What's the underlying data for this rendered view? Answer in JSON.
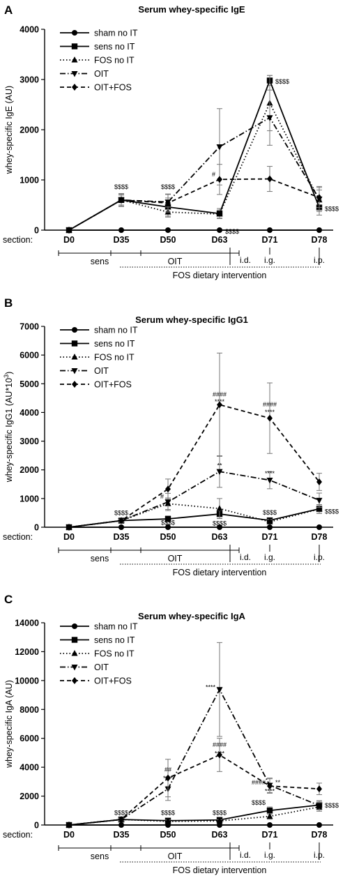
{
  "chart_data": [
    {
      "panel_label": "A",
      "type": "line",
      "title": "Serum whey-specific IgE",
      "ylabel": "whey-specific IgE (AU)",
      "xlabel": "section:",
      "categories": [
        "D0",
        "D35",
        "D50",
        "D63",
        "D71",
        "D78"
      ],
      "ylim": [
        0,
        4000
      ],
      "yticks": [
        "0",
        "1000",
        "2000",
        "3000",
        "4000"
      ],
      "legend_position": "top-left",
      "series": [
        {
          "name": "sham no IT",
          "values": [
            0,
            0,
            0,
            0,
            0,
            0
          ],
          "errors": [
            0,
            0,
            0,
            0,
            0,
            0
          ]
        },
        {
          "name": "sens no IT",
          "values": [
            0,
            600,
            460,
            330,
            2980,
            450
          ],
          "errors": [
            0,
            130,
            180,
            100,
            100,
            150
          ]
        },
        {
          "name": "FOS no IT",
          "values": [
            0,
            600,
            360,
            320,
            2530,
            600
          ],
          "errors": [
            0,
            120,
            100,
            80,
            550,
            200
          ]
        },
        {
          "name": "OIT",
          "values": [
            0,
            600,
            560,
            1660,
            2240,
            620
          ],
          "errors": [
            0,
            100,
            150,
            760,
            550,
            250
          ]
        },
        {
          "name": "OIT+FOS",
          "values": [
            0,
            600,
            540,
            1010,
            1020,
            650
          ],
          "errors": [
            0,
            100,
            180,
            300,
            250,
            200
          ]
        }
      ],
      "annotations": [
        {
          "text": "$$$$",
          "category": "D35",
          "y": 820
        },
        {
          "text": "$$$$",
          "category": "D50",
          "y": 820
        },
        {
          "text": "$$$$",
          "category": "D63",
          "y": -70,
          "right": true
        },
        {
          "text": "$$$$",
          "category": "D71",
          "y": 2920,
          "right": true
        },
        {
          "text": "$$$$",
          "category": "D78",
          "y": 380,
          "right": true
        },
        {
          "text": "#",
          "category": "D63",
          "y": 1070,
          "left": true
        }
      ],
      "phases": [
        {
          "label": "sens",
          "from": "D0",
          "to": "D35"
        },
        {
          "label": "OIT",
          "from": "D35",
          "to": "D63"
        }
      ],
      "routes": [
        "i.d.",
        "i.g.",
        "i.p."
      ],
      "intervention_label": "FOS dietary intervention"
    },
    {
      "panel_label": "B",
      "type": "line",
      "title": "Serum whey-specific IgG1",
      "ylabel": "whey-specific IgG1 (AU*10",
      "ylabel_sup": "3",
      "ylabel_end": ")",
      "xlabel": "section:",
      "categories": [
        "D0",
        "D35",
        "D50",
        "D63",
        "D71",
        "D78"
      ],
      "ylim": [
        0,
        7000
      ],
      "yticks": [
        "0",
        "1000",
        "2000",
        "3000",
        "4000",
        "5000",
        "6000",
        "7000"
      ],
      "legend_position": "top-left",
      "series": [
        {
          "name": "sham no IT",
          "values": [
            0,
            0,
            0,
            0,
            0,
            0
          ],
          "errors": [
            0,
            0,
            0,
            0,
            0,
            0
          ]
        },
        {
          "name": "sens no IT",
          "values": [
            0,
            230,
            290,
            460,
            240,
            640
          ],
          "errors": [
            0,
            50,
            100,
            150,
            80,
            150
          ]
        },
        {
          "name": "FOS no IT",
          "values": [
            0,
            230,
            820,
            650,
            190,
            630
          ],
          "errors": [
            0,
            50,
            200,
            350,
            80,
            150
          ]
        },
        {
          "name": "OIT",
          "values": [
            0,
            230,
            880,
            1940,
            1640,
            940
          ],
          "errors": [
            0,
            50,
            300,
            550,
            300,
            250
          ]
        },
        {
          "name": "OIT+FOS",
          "values": [
            0,
            230,
            1330,
            4270,
            3800,
            1580
          ],
          "errors": [
            0,
            50,
            350,
            1800,
            1230,
            300
          ]
        }
      ],
      "annotations": [
        {
          "text": "$$$$",
          "category": "D35",
          "y": 420
        },
        {
          "text": "#",
          "category": "D50",
          "y": 1000,
          "left": true
        },
        {
          "text": "$$$$",
          "category": "D50",
          "y": 80
        },
        {
          "text": "**",
          "category": "D63",
          "y": 2080
        },
        {
          "text": "####",
          "category": "D63",
          "y": 4560
        },
        {
          "text": "****",
          "category": "D63",
          "y": 4300
        },
        {
          "text": "$$$$",
          "category": "D63",
          "y": 60
        },
        {
          "text": "####",
          "category": "D71",
          "y": 4200
        },
        {
          "text": "****",
          "category": "D71",
          "y": 3940
        },
        {
          "text": "****",
          "category": "D71",
          "y": 1800
        },
        {
          "text": "$$$$",
          "category": "D71",
          "y": 440
        },
        {
          "text": "$$$$",
          "category": "D78",
          "y": 480,
          "right": true
        }
      ],
      "phases": [
        {
          "label": "sens",
          "from": "D0",
          "to": "D35"
        },
        {
          "label": "OIT",
          "from": "D35",
          "to": "D63"
        }
      ],
      "routes": [
        "i.d.",
        "i.g.",
        "i.p."
      ],
      "intervention_label": "FOS dietary intervention"
    },
    {
      "panel_label": "C",
      "type": "line",
      "title": "Serum whey-specific IgA",
      "ylabel": "whey-specific IgA (AU)",
      "xlabel": "section:",
      "categories": [
        "D0",
        "D35",
        "D50",
        "D63",
        "D71",
        "D78"
      ],
      "ylim": [
        0,
        14000
      ],
      "yticks": [
        "0",
        "2000",
        "4000",
        "6000",
        "8000",
        "10000",
        "12000",
        "14000"
      ],
      "legend_position": "top-left",
      "series": [
        {
          "name": "sham no IT",
          "values": [
            0,
            0,
            0,
            0,
            0,
            0
          ],
          "errors": [
            0,
            0,
            0,
            0,
            0,
            0
          ]
        },
        {
          "name": "sens no IT",
          "values": [
            0,
            380,
            300,
            350,
            1000,
            1380
          ],
          "errors": [
            0,
            100,
            100,
            100,
            250,
            300
          ]
        },
        {
          "name": "FOS no IT",
          "values": [
            0,
            380,
            250,
            280,
            600,
            1250
          ],
          "errors": [
            0,
            100,
            100,
            100,
            200,
            300
          ]
        },
        {
          "name": "OIT",
          "values": [
            0,
            380,
            2500,
            9380,
            2750,
            1350
          ],
          "errors": [
            0,
            100,
            800,
            3250,
            500,
            300
          ]
        },
        {
          "name": "OIT+FOS",
          "values": [
            0,
            380,
            3250,
            4850,
            2700,
            2500
          ],
          "errors": [
            0,
            100,
            1300,
            1150,
            500,
            400
          ]
        }
      ],
      "annotations": [
        {
          "text": "$$$$",
          "category": "D35",
          "y": 700
        },
        {
          "text": "##",
          "category": "D50",
          "y": 3700
        },
        {
          "text": "****",
          "category": "D50",
          "y": 3100
        },
        {
          "text": "**",
          "category": "D50",
          "y": 2400
        },
        {
          "text": "$$$$",
          "category": "D50",
          "y": 700
        },
        {
          "text": "****",
          "category": "D63",
          "y": 9400,
          "left": true
        },
        {
          "text": "####",
          "category": "D63",
          "y": 5400
        },
        {
          "text": "****",
          "category": "D63",
          "y": 4800
        },
        {
          "text": "$$$$",
          "category": "D63",
          "y": 700
        },
        {
          "text": "####",
          "category": "D71",
          "y": 2800,
          "left": true
        },
        {
          "text": "****",
          "category": "D71",
          "y": 2200
        },
        {
          "text": "**",
          "category": "D71",
          "y": 2800,
          "right": true
        },
        {
          "text": "$$$$",
          "category": "D71",
          "y": 1400,
          "left": true
        },
        {
          "text": "$$$$",
          "category": "D78",
          "y": 1200,
          "right": true
        }
      ],
      "phases": [
        {
          "label": "sens",
          "from": "D0",
          "to": "D35"
        },
        {
          "label": "OIT",
          "from": "D35",
          "to": "D63"
        }
      ],
      "routes": [
        "i.d.",
        "i.g.",
        "i.p."
      ],
      "intervention_label": "FOS dietary intervention"
    }
  ],
  "series_styles": [
    {
      "dash": "",
      "marker": "circle"
    },
    {
      "dash": "",
      "marker": "square"
    },
    {
      "dash": "1.5,3",
      "marker": "triangle-up"
    },
    {
      "dash": "8,3,1.5,3",
      "marker": "triangle-down"
    },
    {
      "dash": "6,4",
      "marker": "diamond"
    }
  ]
}
